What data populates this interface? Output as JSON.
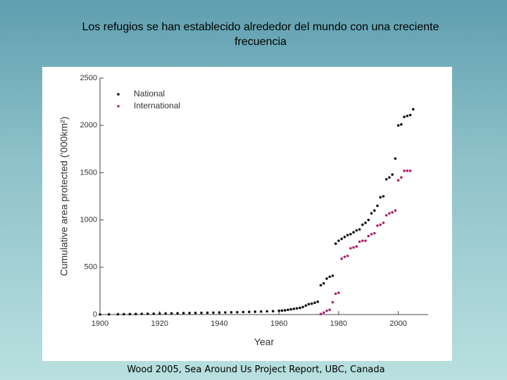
{
  "chart_data": {
    "type": "scatter",
    "title": "Los refugios se han establecido alrededor del mundo con una creciente frecuencia",
    "x_label": "Year",
    "y_label": "Cumulative area protected ('000km²)",
    "source": "Wood 2005, Sea Around Us Project Report, UBC, Canada",
    "xlim": [
      1900,
      2010
    ],
    "xticks": [
      1900,
      1920,
      1940,
      1960,
      1980,
      2000
    ],
    "ylim": [
      0,
      2500
    ],
    "yticks": [
      0,
      500,
      1000,
      1500,
      2000,
      2500
    ],
    "legend": "upper left",
    "series": [
      {
        "name": "National",
        "color": "#111111",
        "x": [
          1900,
          1903,
          1906,
          1908,
          1910,
          1912,
          1914,
          1916,
          1918,
          1920,
          1922,
          1924,
          1926,
          1928,
          1930,
          1932,
          1934,
          1936,
          1938,
          1940,
          1942,
          1944,
          1946,
          1948,
          1950,
          1952,
          1954,
          1956,
          1958,
          1960,
          1961,
          1962,
          1963,
          1964,
          1965,
          1966,
          1967,
          1968,
          1969,
          1970,
          1971,
          1972,
          1973,
          1974,
          1975,
          1976,
          1977,
          1978,
          1979,
          1980,
          1981,
          1982,
          1983,
          1984,
          1985,
          1986,
          1987,
          1988,
          1989,
          1990,
          1991,
          1992,
          1993,
          1994,
          1995,
          1996,
          1997,
          1998,
          1999,
          2000,
          2001,
          2002,
          2003,
          2004,
          2005
        ],
        "values": [
          1,
          2,
          3,
          4,
          5,
          6,
          7,
          8,
          9,
          10,
          12,
          13,
          14,
          15,
          16,
          17,
          18,
          19,
          20,
          21,
          22,
          24,
          25,
          27,
          28,
          30,
          32,
          34,
          36,
          40,
          42,
          45,
          50,
          55,
          60,
          65,
          70,
          80,
          95,
          110,
          115,
          125,
          135,
          310,
          330,
          380,
          400,
          410,
          750,
          780,
          800,
          820,
          840,
          850,
          870,
          890,
          900,
          950,
          970,
          1000,
          1070,
          1100,
          1150,
          1240,
          1250,
          1430,
          1450,
          1480,
          1650,
          2000,
          2010,
          2090,
          2100,
          2110,
          2170
        ]
      },
      {
        "name": "International",
        "color": "#b0206a",
        "x": [
          1974,
          1975,
          1976,
          1977,
          1978,
          1979,
          1980,
          1981,
          1982,
          1983,
          1984,
          1985,
          1986,
          1987,
          1988,
          1989,
          1990,
          1991,
          1992,
          1993,
          1994,
          1995,
          1996,
          1997,
          1998,
          1999,
          2000,
          2001,
          2002,
          2003,
          2004
        ],
        "values": [
          5,
          20,
          40,
          50,
          130,
          220,
          230,
          590,
          610,
          620,
          700,
          710,
          720,
          770,
          780,
          780,
          830,
          850,
          860,
          940,
          950,
          970,
          1050,
          1070,
          1080,
          1100,
          1420,
          1450,
          1520,
          1520,
          1520
        ]
      }
    ]
  }
}
